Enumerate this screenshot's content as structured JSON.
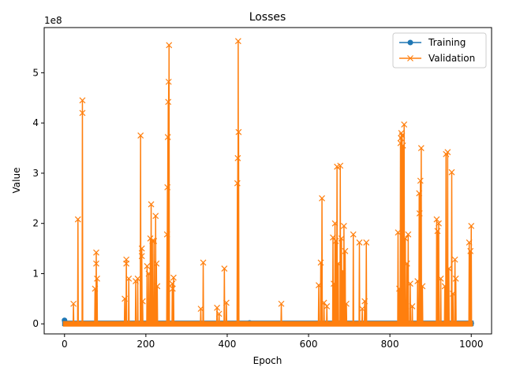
{
  "chart_data": {
    "type": "line",
    "title": "Losses",
    "xlabel": "Epoch",
    "ylabel": "Value",
    "y_offset_text": "1e8",
    "xlim": [
      -50,
      1050
    ],
    "ylim": [
      -0.2,
      5.9
    ],
    "y_scale_factor": 100000000,
    "xticks": [
      0,
      200,
      400,
      600,
      800,
      1000
    ],
    "yticks": [
      0,
      1,
      2,
      3,
      4,
      5
    ],
    "grid": false,
    "legend_position": "top-right",
    "series": [
      {
        "name": "Training",
        "color": "#1f77b4",
        "marker": "circle",
        "baseline": 0.01,
        "points": [
          [
            0,
            0.07
          ],
          [
            455,
            0.02
          ],
          [
            1000,
            0.01
          ]
        ]
      },
      {
        "name": "Validation",
        "color": "#ff7f0e",
        "marker": "x",
        "baseline": 0.0,
        "spikes": [
          [
            22,
            0.4
          ],
          [
            33,
            2.08
          ],
          [
            44,
            4.45
          ],
          [
            44,
            4.2
          ],
          [
            75,
            0.7
          ],
          [
            78,
            1.42
          ],
          [
            78,
            1.2
          ],
          [
            80,
            0.9
          ],
          [
            148,
            0.5
          ],
          [
            152,
            1.28
          ],
          [
            152,
            1.2
          ],
          [
            158,
            0.9
          ],
          [
            175,
            0.85
          ],
          [
            180,
            0.9
          ],
          [
            187,
            3.75
          ],
          [
            190,
            1.5
          ],
          [
            190,
            1.35
          ],
          [
            192,
            0.45
          ],
          [
            203,
            1.15
          ],
          [
            207,
            1.0
          ],
          [
            211,
            1.7
          ],
          [
            213,
            2.38
          ],
          [
            216,
            1.65
          ],
          [
            220,
            1.65
          ],
          [
            224,
            2.15
          ],
          [
            226,
            1.2
          ],
          [
            228,
            0.75
          ],
          [
            252,
            1.78
          ],
          [
            253,
            2.72
          ],
          [
            254,
            3.72
          ],
          [
            255,
            4.42
          ],
          [
            256,
            4.82
          ],
          [
            257,
            5.55
          ],
          [
            265,
            0.8
          ],
          [
            266,
            0.7
          ],
          [
            268,
            0.92
          ],
          [
            335,
            0.3
          ],
          [
            341,
            1.22
          ],
          [
            375,
            0.32
          ],
          [
            380,
            0.2
          ],
          [
            393,
            1.1
          ],
          [
            398,
            0.42
          ],
          [
            425,
            2.8
          ],
          [
            426,
            3.3
          ],
          [
            427,
            5.63
          ],
          [
            428,
            3.82
          ],
          [
            533,
            0.4
          ],
          [
            625,
            0.77
          ],
          [
            630,
            1.22
          ],
          [
            633,
            2.5
          ],
          [
            638,
            0.42
          ],
          [
            645,
            0.35
          ],
          [
            660,
            1.72
          ],
          [
            662,
            0.8
          ],
          [
            665,
            2.0
          ],
          [
            667,
            1.65
          ],
          [
            670,
            3.13
          ],
          [
            673,
            1.2
          ],
          [
            678,
            3.15
          ],
          [
            681,
            1.7
          ],
          [
            684,
            1.05
          ],
          [
            687,
            1.95
          ],
          [
            690,
            1.45
          ],
          [
            693,
            0.4
          ],
          [
            710,
            1.78
          ],
          [
            725,
            1.62
          ],
          [
            732,
            0.3
          ],
          [
            738,
            0.45
          ],
          [
            742,
            1.62
          ],
          [
            820,
            1.82
          ],
          [
            823,
            0.7
          ],
          [
            826,
            3.6
          ],
          [
            827,
            3.7
          ],
          [
            828,
            3.8
          ],
          [
            830,
            3.75
          ],
          [
            832,
            3.55
          ],
          [
            835,
            3.97
          ],
          [
            838,
            1.7
          ],
          [
            842,
            1.2
          ],
          [
            845,
            1.78
          ],
          [
            850,
            0.8
          ],
          [
            855,
            0.35
          ],
          [
            868,
            0.85
          ],
          [
            872,
            2.6
          ],
          [
            873,
            2.2
          ],
          [
            875,
            2.85
          ],
          [
            877,
            3.5
          ],
          [
            880,
            0.75
          ],
          [
            915,
            2.08
          ],
          [
            917,
            1.85
          ],
          [
            920,
            2.0
          ],
          [
            925,
            0.9
          ],
          [
            935,
            0.75
          ],
          [
            938,
            3.38
          ],
          [
            942,
            3.42
          ],
          [
            945,
            1.1
          ],
          [
            952,
            3.02
          ],
          [
            955,
            0.6
          ],
          [
            960,
            1.28
          ],
          [
            962,
            0.9
          ],
          [
            995,
            1.62
          ],
          [
            998,
            1.45
          ],
          [
            1000,
            1.95
          ]
        ]
      }
    ]
  }
}
